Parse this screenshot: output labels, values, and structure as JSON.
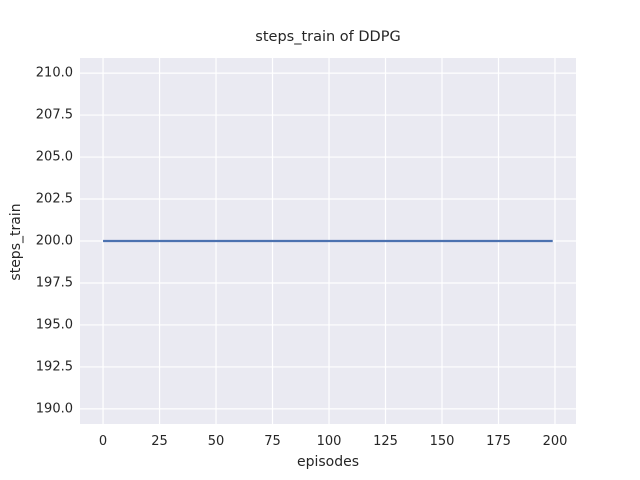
{
  "colors": {
    "figure_bg": "#ffffff",
    "axes_bg": "#eaeaf2",
    "grid": "#ffffff",
    "line": "#4c72b0",
    "text": "#262626"
  },
  "chart_data": {
    "type": "line",
    "title": "steps_train of DDPG",
    "xlabel": "episodes",
    "ylabel": "steps_train",
    "xlim": [
      -10.2,
      209.3
    ],
    "ylim": [
      189.1,
      210.9
    ],
    "grid": true,
    "legend_position": "none",
    "xticks": {
      "values": [
        0,
        25,
        50,
        75,
        100,
        125,
        150,
        175,
        200
      ],
      "labels": [
        "0",
        "25",
        "50",
        "75",
        "100",
        "125",
        "150",
        "175",
        "200"
      ]
    },
    "yticks": {
      "values": [
        190.0,
        192.5,
        195.0,
        197.5,
        200.0,
        202.5,
        205.0,
        207.5,
        210.0
      ],
      "labels": [
        "190.0",
        "192.5",
        "195.0",
        "197.5",
        "200.0",
        "202.5",
        "205.0",
        "207.5",
        "210.0"
      ]
    },
    "series": [
      {
        "name": "steps_train",
        "color": "#4c72b0",
        "x": [
          0,
          199
        ],
        "y": [
          200,
          200
        ]
      }
    ]
  }
}
